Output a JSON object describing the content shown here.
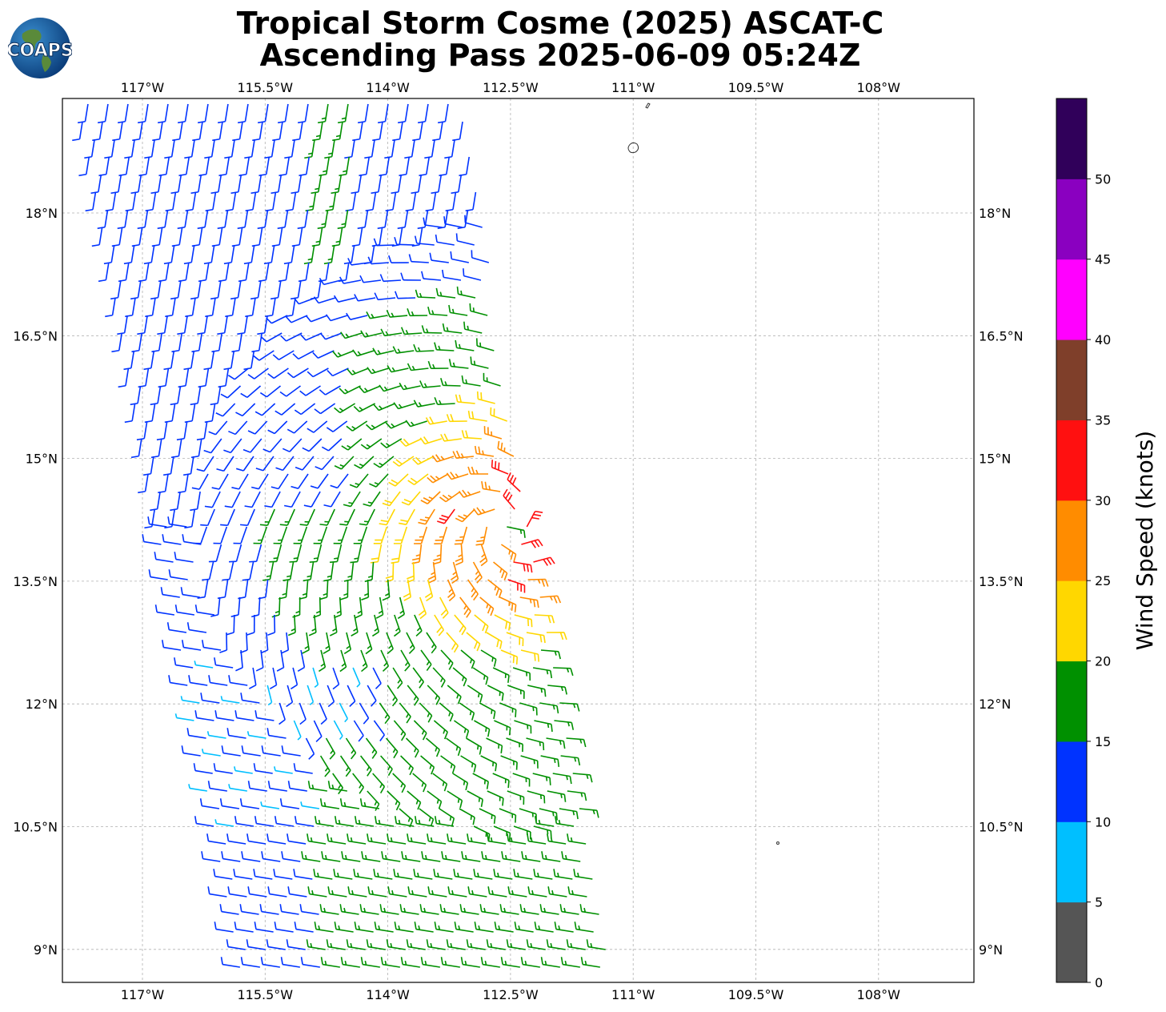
{
  "title_line1": "Tropical Storm Cosme (2025) ASCAT-C",
  "title_line2": "Ascending Pass 2025-06-09 05:24Z",
  "logo_text": "COAPS",
  "lon_labels": [
    "117°W",
    "115.5°W",
    "114°W",
    "112.5°W",
    "111°W",
    "109.5°W",
    "108°W"
  ],
  "lat_labels": [
    "18°N",
    "16.5°N",
    "15°N",
    "13.5°N",
    "12°N",
    "10.5°N",
    "9°N"
  ],
  "colorbar": {
    "label": "Wind Speed (knots)",
    "ticks": [
      "0",
      "5",
      "10",
      "15",
      "20",
      "25",
      "30",
      "35",
      "40",
      "45",
      "50"
    ],
    "colors": [
      "#555555",
      "#00bfff",
      "#0033ff",
      "#009000",
      "#ffd700",
      "#ff8c00",
      "#ff1010",
      "#7f3f2a",
      "#ff00ff",
      "#8a00c0",
      "#30005a"
    ]
  },
  "storm_center": {
    "lon": -112.55,
    "lat": 14.2
  }
}
